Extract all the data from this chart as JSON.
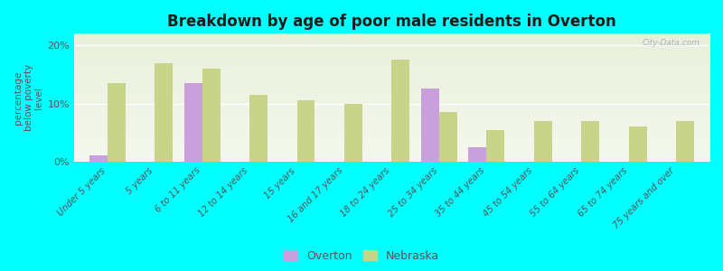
{
  "title": "Breakdown by age of poor male residents in Overton",
  "ylabel": "percentage\nbelow poverty\nlevel",
  "categories": [
    "Under 5 years",
    "5 years",
    "6 to 11 years",
    "12 to 14 years",
    "15 years",
    "16 and 17 years",
    "18 to 24 years",
    "25 to 34 years",
    "35 to 44 years",
    "45 to 54 years",
    "55 to 64 years",
    "65 to 74 years",
    "75 years and over"
  ],
  "overton_values": [
    1.0,
    null,
    13.5,
    null,
    null,
    null,
    null,
    12.5,
    2.5,
    null,
    null,
    null,
    null
  ],
  "nebraska_values": [
    13.5,
    17.0,
    16.0,
    11.5,
    10.5,
    10.0,
    17.5,
    8.5,
    5.5,
    7.0,
    7.0,
    6.0,
    7.0
  ],
  "overton_color": "#c9a0dc",
  "nebraska_color": "#c8d48a",
  "background_color": "#00ffff",
  "plot_bg_colors": [
    "#e8f0da",
    "#f5f8ee"
  ],
  "title_color": "#1a1a1a",
  "label_color": "#555555",
  "tick_color": "#555555",
  "bar_width": 0.38,
  "ylim": [
    0,
    22
  ],
  "yticks": [
    0,
    10,
    20
  ],
  "ytick_labels": [
    "0%",
    "10%",
    "20%"
  ]
}
